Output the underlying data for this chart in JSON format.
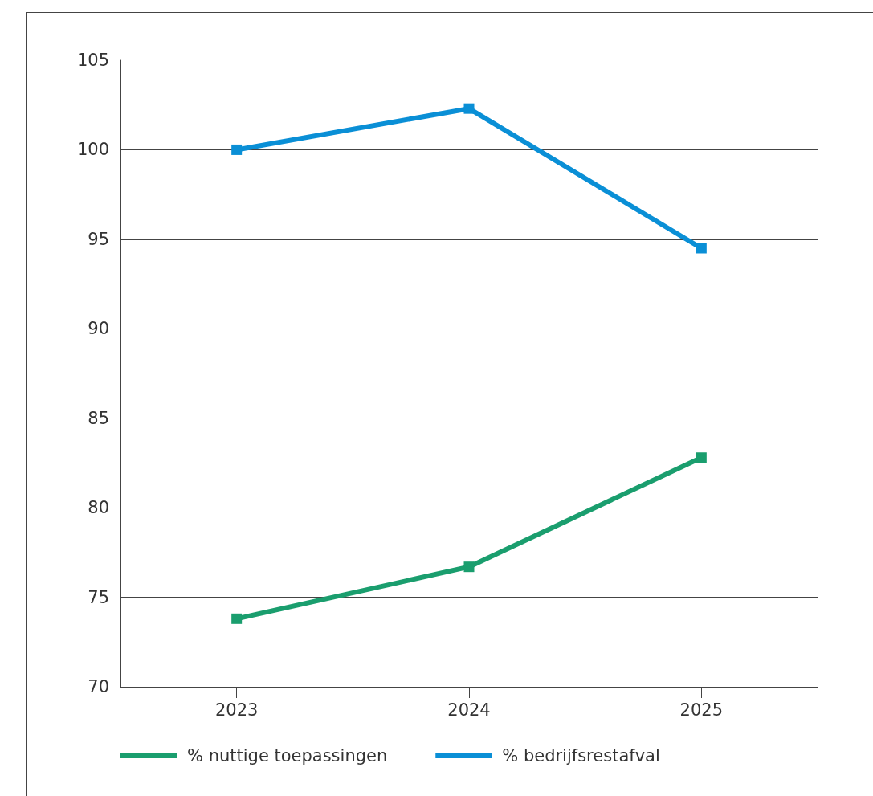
{
  "chart_data": {
    "type": "line",
    "categories": [
      "2023",
      "2024",
      "2025"
    ],
    "series": [
      {
        "name": "% nuttige toepassingen",
        "color": "#1a9e6e",
        "values": [
          73.8,
          76.7,
          82.8
        ]
      },
      {
        "name": "% bedrijfsrestafval",
        "color": "#0a8fd6",
        "values": [
          100,
          102.3,
          94.5
        ]
      }
    ],
    "ylim": [
      70,
      105
    ],
    "yticks": [
      70,
      75,
      80,
      85,
      90,
      95,
      100,
      105
    ],
    "grid": "y",
    "legend": "bottom left",
    "marker": "square",
    "line_style": "solid"
  }
}
